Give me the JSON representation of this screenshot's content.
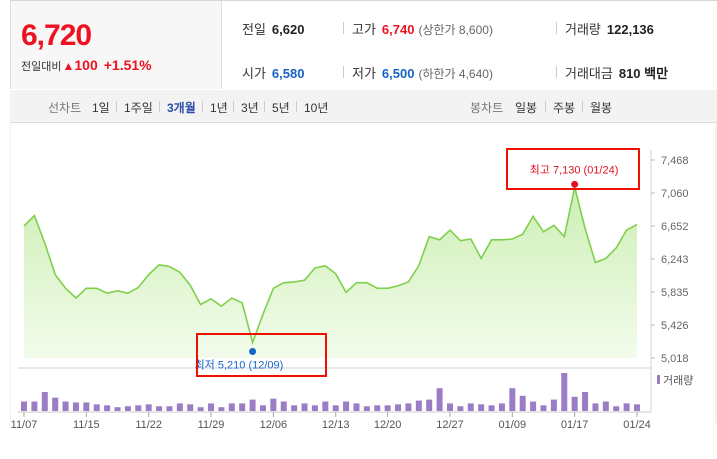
{
  "quote": {
    "price": "6,720",
    "change_label": "전일대비",
    "change_arrow": "▲",
    "change_amount": "100",
    "change_pct": "+1.51%",
    "prev_close_label": "전일",
    "prev_close": "6,620",
    "high_label": "고가",
    "high": "6,740",
    "upper_limit": "(상한가 8,600)",
    "volume_label": "거래량",
    "volume": "122,136",
    "open_label": "시가",
    "open": "6,580",
    "low_label": "저가",
    "low": "6,500",
    "lower_limit": "(하한가 4,640)",
    "turnover_label": "거래대금",
    "turnover": "810 백만"
  },
  "toolbar": {
    "line_chart_label": "선차트",
    "periods": [
      "1일",
      "1주일",
      "3개월",
      "1년",
      "3년",
      "5년",
      "10년"
    ],
    "active_period": "3개월",
    "candle_chart_label": "봉차트",
    "candles": [
      "일봉",
      "주봉",
      "월봉"
    ]
  },
  "chart_annotations": {
    "max_label": "최고 7,130 (01/24)",
    "min_label": "최저 5,210 (12/09)",
    "volume_legend": "거래량"
  },
  "colors": {
    "up": "#e11122",
    "down": "#1563c8",
    "line": "#7fd04a",
    "volume_bar": "#9a7dc4",
    "highlight_box": "#e10000"
  },
  "chart_data": {
    "type": "area",
    "y_ticks": [
      "7,468",
      "7,060",
      "6,652",
      "6,243",
      "5,835",
      "5,426",
      "5,018"
    ],
    "ylim": [
      5018,
      7468
    ],
    "x_ticks": [
      "11/07",
      "11/15",
      "11/22",
      "11/29",
      "12/06",
      "12/13",
      "12/20",
      "12/27",
      "01/09",
      "01/17",
      "01/24"
    ],
    "series": [
      {
        "values": [
          6650,
          6780,
          6440,
          6050,
          5880,
          5760,
          5880,
          5880,
          5820,
          5850,
          5820,
          5890,
          6050,
          6170,
          6150,
          6080,
          5920,
          5680,
          5750,
          5660,
          5760,
          5700,
          5210,
          5560,
          5880,
          5950,
          5960,
          5980,
          6130,
          6160,
          6060,
          5830,
          5950,
          5950,
          5880,
          5880,
          5910,
          5960,
          6160,
          6520,
          6480,
          6600,
          6470,
          6490,
          6250,
          6480,
          6480,
          6490,
          6550,
          6770,
          6580,
          6660,
          6520,
          7130,
          6620,
          6200,
          6250,
          6380,
          6600,
          6670
        ]
      }
    ],
    "volume": [
      10,
      10,
      20,
      14,
      10,
      9,
      9,
      7,
      6,
      4,
      5,
      6,
      7,
      5,
      5,
      8,
      7,
      4,
      8,
      4,
      8,
      8,
      12,
      6,
      13,
      10,
      6,
      8,
      6,
      10,
      6,
      10,
      8,
      5,
      6,
      6,
      7,
      8,
      11,
      12,
      24,
      8,
      5,
      8,
      7,
      6,
      8,
      24,
      16,
      10,
      6,
      12,
      40,
      15,
      20,
      8,
      10,
      5,
      8,
      7
    ]
  }
}
